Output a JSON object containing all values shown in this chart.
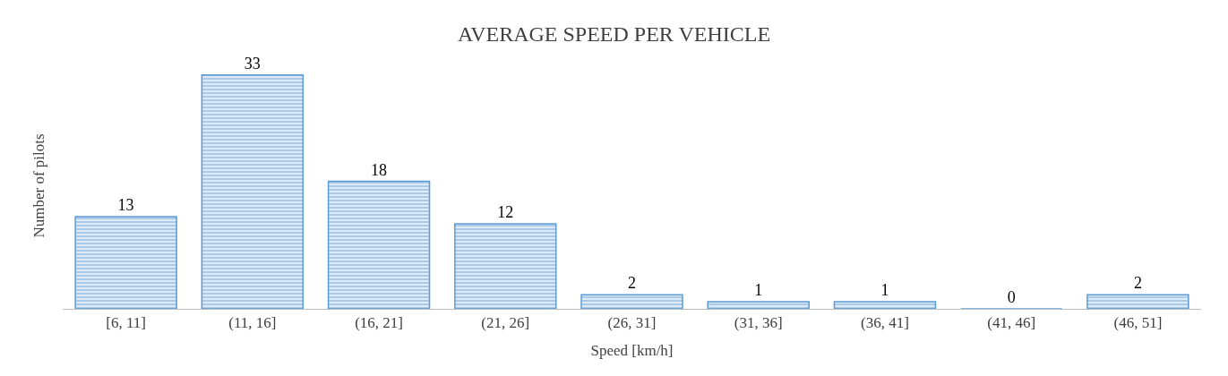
{
  "chart_data": {
    "type": "bar",
    "title": "AVERAGE SPEED PER VEHICLE",
    "xlabel": "Speed [km/h]",
    "ylabel": "Number of pilots",
    "categories": [
      "[6, 11]",
      "(11, 16]",
      "(16, 21]",
      "(21, 26]",
      "(26, 31]",
      "(31, 36]",
      "(36, 41]",
      "(41, 46]",
      "(46, 51]"
    ],
    "values": [
      13,
      33,
      18,
      12,
      2,
      1,
      1,
      0,
      2
    ],
    "color": "#5b9bd5",
    "data_labels": true
  }
}
